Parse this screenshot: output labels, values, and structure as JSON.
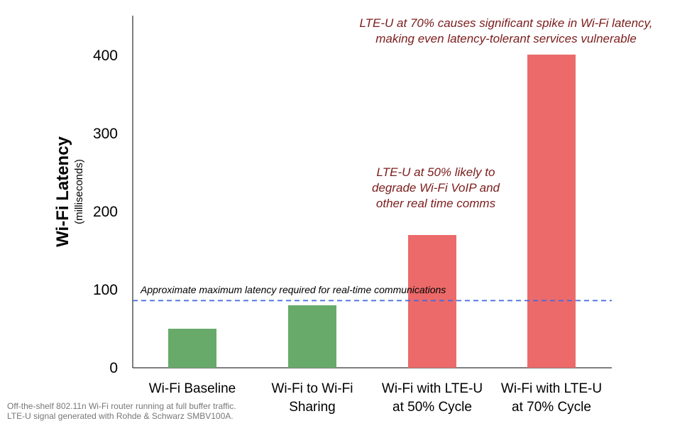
{
  "chart_data": {
    "type": "bar",
    "categories": [
      [
        "Wi-Fi Baseline"
      ],
      [
        "Wi-Fi to Wi-Fi",
        "Sharing"
      ],
      [
        "Wi-Fi with LTE-U",
        "at 50% Cycle"
      ],
      [
        "Wi-Fi with LTE-U",
        "at 70% Cycle"
      ]
    ],
    "values": [
      50,
      80,
      170,
      401
    ],
    "bar_colors": [
      "#68aa6a",
      "#68aa6a",
      "#ec6a6a",
      "#ec6a6a"
    ],
    "ylabel": "Wi-Fi Latency",
    "ylabel_sub": "(milliseconds)",
    "ylim": [
      0,
      450
    ],
    "yticks": [
      0,
      100,
      200,
      300,
      400
    ],
    "grid": false,
    "reference_line": {
      "value": 86,
      "label": "Approximate maximum latency required for real-time communications",
      "color": "#4169e1"
    },
    "annotations": [
      {
        "lines": [
          "LTE-U at 70% causes significant spike in Wi-Fi latency,",
          "making even latency-tolerant services vulnerable"
        ],
        "color": "#7b1c1c"
      },
      {
        "lines": [
          "LTE-U at 50% likely to",
          "degrade Wi-Fi VoIP and",
          "other real time comms"
        ],
        "color": "#7b1c1c"
      }
    ]
  },
  "footnote": {
    "line1": "Off-the-shelf 802.11n Wi-Fi router running at full buffer traffic.",
    "line2": "LTE-U signal generated with Rohde & Schwarz SMBV100A."
  }
}
